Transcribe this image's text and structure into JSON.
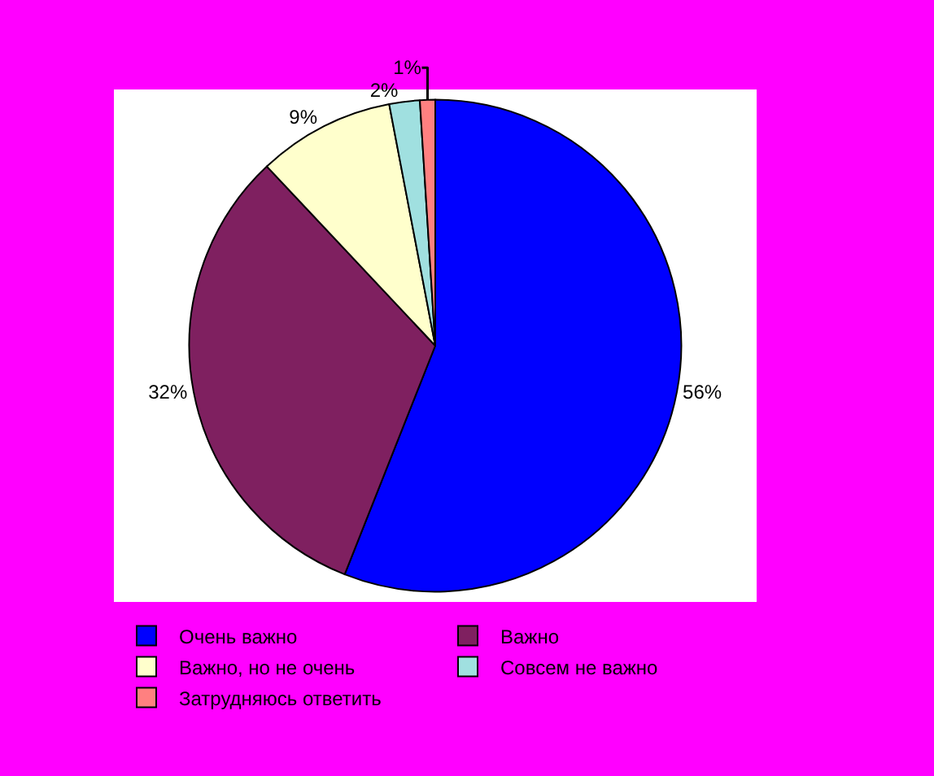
{
  "chart_data": {
    "type": "pie",
    "categories": [
      "Очень важно",
      "Важно",
      "Важно, но не очень",
      "Совсем не важно",
      "Затрудняюсь ответить"
    ],
    "values": [
      56,
      32,
      9,
      2,
      1
    ],
    "colors": [
      "#0000ff",
      "#7f2060",
      "#ffffcc",
      "#a0e0e0",
      "#ff8080"
    ],
    "value_labels": [
      "56%",
      "32%",
      "9%",
      "2%",
      "1%"
    ],
    "legend": "bottom"
  }
}
